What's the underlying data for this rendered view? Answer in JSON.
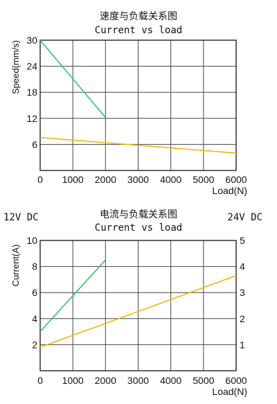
{
  "chart_data": [
    {
      "type": "line",
      "title": "速度与负载关系图",
      "subtitle": "Current vs load",
      "xlabel": "Load(N)",
      "ylabel": "Speed(mm/s)",
      "xlim": [
        0,
        6000
      ],
      "ylim": [
        0,
        30
      ],
      "xticks": [
        "0",
        "1000",
        "2000",
        "3000",
        "4000",
        "5000",
        "6000"
      ],
      "yticks": [
        "6",
        "12",
        "18",
        "24",
        "30"
      ],
      "grid": true,
      "series": [
        {
          "color": "#33c466",
          "x": [
            0,
            2000
          ],
          "y": [
            30,
            12.2
          ]
        },
        {
          "color": "#f5b400",
          "x": [
            0,
            6000
          ],
          "y": [
            7.6,
            4.0
          ]
        }
      ]
    },
    {
      "type": "line",
      "title": "电流与负载关系图",
      "subtitle": "Current vs load",
      "xlabel": "Load(N)",
      "ylabel": "Current(A)",
      "left_axis_caption": "12V DC",
      "right_axis_caption": "24V DC",
      "xlim": [
        0,
        6000
      ],
      "ylim": [
        0,
        10
      ],
      "y2lim": [
        0,
        5
      ],
      "xticks": [
        "0",
        "1000",
        "2000",
        "3000",
        "4000",
        "5000",
        "6000"
      ],
      "yticks": [
        "2",
        "4",
        "6",
        "8",
        "10"
      ],
      "y2ticks": [
        "1",
        "2",
        "3",
        "4",
        "5"
      ],
      "grid": true,
      "series": [
        {
          "color": "#33c466",
          "axis": "left",
          "x": [
            0,
            2000
          ],
          "y": [
            3.0,
            8.5
          ]
        },
        {
          "color": "#f5b400",
          "axis": "left",
          "x": [
            0,
            6000
          ],
          "y": [
            1.8,
            7.3
          ]
        }
      ]
    }
  ]
}
